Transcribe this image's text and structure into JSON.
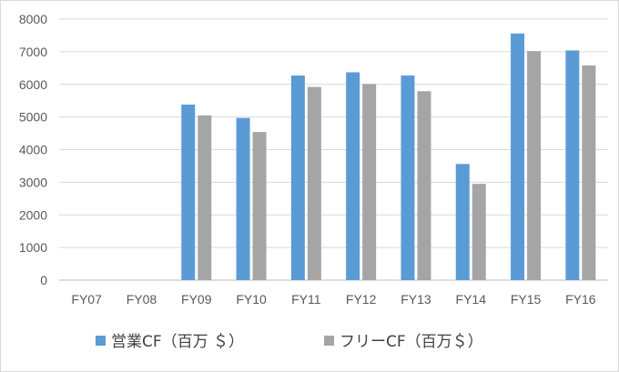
{
  "chart_data": {
    "type": "bar",
    "categories": [
      "FY07",
      "FY08",
      "FY09",
      "FY10",
      "FY11",
      "FY12",
      "FY13",
      "FY14",
      "FY15",
      "FY16"
    ],
    "series": [
      {
        "name": "営業CF（百万 ＄）",
        "color": "#5b9bd5",
        "values": [
          null,
          null,
          5380,
          4970,
          6270,
          6370,
          6270,
          3560,
          7560,
          7040
        ]
      },
      {
        "name": "フリーCF（百万＄）",
        "color": "#a5a5a5",
        "values": [
          null,
          null,
          5050,
          4540,
          5920,
          6010,
          5790,
          2950,
          7020,
          6580
        ]
      }
    ],
    "ylim": [
      0,
      8000
    ],
    "yticks": [
      0,
      1000,
      2000,
      3000,
      4000,
      5000,
      6000,
      7000,
      8000
    ],
    "grid": true,
    "legend": "bottom",
    "title": "",
    "xlabel": "",
    "ylabel": ""
  }
}
